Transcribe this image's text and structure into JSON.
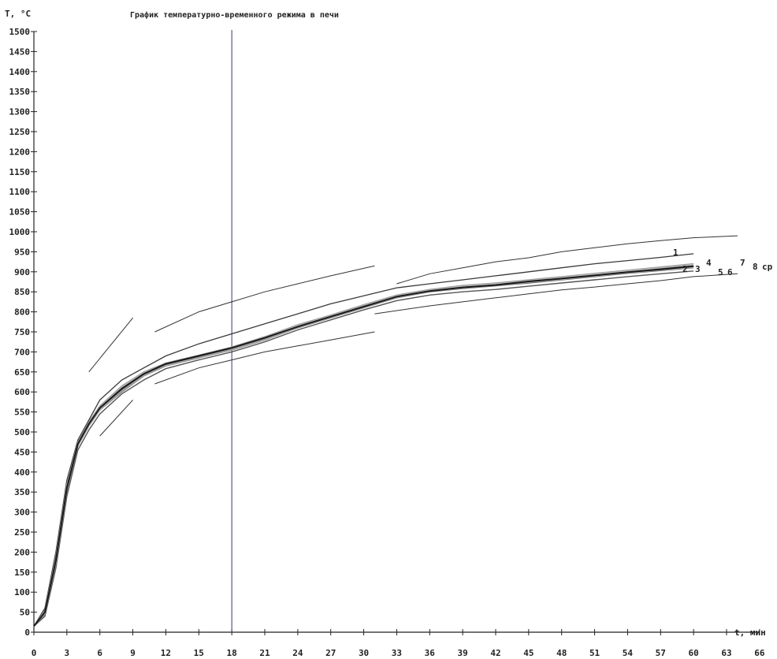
{
  "chart_data": {
    "type": "line",
    "title": "График температурно-временного режима в печи",
    "ylabel": "T, °C",
    "xlabel": "t, мин",
    "xlim": [
      0,
      66
    ],
    "ylim": [
      0,
      1500
    ],
    "x_ticks": [
      0,
      3,
      6,
      9,
      12,
      15,
      18,
      21,
      24,
      27,
      30,
      33,
      36,
      39,
      42,
      45,
      48,
      51,
      54,
      57,
      60,
      63,
      66
    ],
    "y_ticks": [
      0,
      50,
      100,
      150,
      200,
      250,
      300,
      350,
      400,
      450,
      500,
      550,
      600,
      650,
      700,
      750,
      800,
      850,
      900,
      950,
      1000,
      1050,
      1100,
      1150,
      1200,
      1250,
      1300,
      1350,
      1400,
      1450,
      1500
    ],
    "grid": false,
    "markers": [
      {
        "x": 18
      }
    ],
    "series": [
      {
        "name": "1",
        "color": "#3a3a3a",
        "points": [
          [
            0,
            15
          ],
          [
            1,
            60
          ],
          [
            2,
            200
          ],
          [
            3,
            380
          ],
          [
            4,
            480
          ],
          [
            5,
            530
          ],
          [
            6,
            580
          ],
          [
            8,
            630
          ],
          [
            10,
            660
          ],
          [
            12,
            690
          ],
          [
            15,
            720
          ],
          [
            18,
            745
          ],
          [
            21,
            770
          ],
          [
            24,
            795
          ],
          [
            27,
            820
          ],
          [
            30,
            840
          ],
          [
            33,
            860
          ],
          [
            36,
            870
          ],
          [
            39,
            880
          ],
          [
            42,
            890
          ],
          [
            45,
            900
          ],
          [
            48,
            910
          ],
          [
            51,
            920
          ],
          [
            54,
            928
          ],
          [
            57,
            936
          ],
          [
            60,
            945
          ]
        ]
      },
      {
        "name": "2",
        "color": "#444444",
        "points": [
          [
            0,
            15
          ],
          [
            1,
            50
          ],
          [
            2,
            180
          ],
          [
            3,
            360
          ],
          [
            4,
            470
          ],
          [
            5,
            520
          ],
          [
            6,
            560
          ],
          [
            8,
            610
          ],
          [
            10,
            645
          ],
          [
            12,
            670
          ],
          [
            15,
            690
          ],
          [
            18,
            710
          ],
          [
            21,
            735
          ],
          [
            24,
            765
          ],
          [
            27,
            790
          ],
          [
            30,
            815
          ],
          [
            33,
            840
          ],
          [
            36,
            855
          ],
          [
            39,
            862
          ],
          [
            42,
            870
          ],
          [
            45,
            878
          ],
          [
            48,
            885
          ],
          [
            51,
            893
          ],
          [
            54,
            900
          ],
          [
            57,
            908
          ],
          [
            60,
            915
          ]
        ]
      },
      {
        "name": "3",
        "color": "#666666",
        "points": [
          [
            0,
            15
          ],
          [
            1,
            45
          ],
          [
            2,
            170
          ],
          [
            3,
            350
          ],
          [
            4,
            465
          ],
          [
            5,
            515
          ],
          [
            6,
            555
          ],
          [
            8,
            600
          ],
          [
            10,
            640
          ],
          [
            12,
            665
          ],
          [
            15,
            685
          ],
          [
            18,
            705
          ],
          [
            21,
            730
          ],
          [
            24,
            760
          ],
          [
            27,
            785
          ],
          [
            30,
            810
          ],
          [
            33,
            835
          ],
          [
            36,
            850
          ],
          [
            39,
            858
          ],
          [
            42,
            865
          ],
          [
            45,
            872
          ],
          [
            48,
            880
          ],
          [
            51,
            888
          ],
          [
            54,
            896
          ],
          [
            57,
            903
          ],
          [
            60,
            910
          ]
        ]
      },
      {
        "name": "4",
        "color": "#999999",
        "points": [
          [
            0,
            15
          ],
          [
            1,
            55
          ],
          [
            2,
            190
          ],
          [
            3,
            370
          ],
          [
            4,
            475
          ],
          [
            5,
            525
          ],
          [
            6,
            565
          ],
          [
            8,
            615
          ],
          [
            10,
            650
          ],
          [
            12,
            672
          ],
          [
            15,
            692
          ],
          [
            18,
            712
          ],
          [
            21,
            738
          ],
          [
            24,
            768
          ],
          [
            27,
            792
          ],
          [
            30,
            818
          ],
          [
            33,
            842
          ],
          [
            36,
            856
          ],
          [
            39,
            866
          ],
          [
            42,
            872
          ],
          [
            45,
            880
          ],
          [
            48,
            888
          ],
          [
            51,
            896
          ],
          [
            54,
            904
          ],
          [
            57,
            912
          ],
          [
            60,
            920
          ]
        ]
      },
      {
        "name": "5",
        "color": "#555555",
        "points": [
          [
            0,
            15
          ],
          [
            1,
            40
          ],
          [
            2,
            160
          ],
          [
            3,
            340
          ],
          [
            4,
            455
          ],
          [
            5,
            505
          ],
          [
            6,
            545
          ],
          [
            8,
            595
          ],
          [
            10,
            630
          ],
          [
            12,
            658
          ],
          [
            15,
            680
          ],
          [
            18,
            700
          ],
          [
            21,
            725
          ],
          [
            24,
            755
          ],
          [
            27,
            780
          ],
          [
            30,
            805
          ],
          [
            33,
            828
          ],
          [
            36,
            842
          ],
          [
            39,
            850
          ],
          [
            42,
            856
          ],
          [
            45,
            864
          ],
          [
            48,
            872
          ],
          [
            51,
            880
          ],
          [
            54,
            888
          ],
          [
            57,
            895
          ],
          [
            60,
            902
          ]
        ]
      },
      {
        "name": "6",
        "color": "#777777",
        "points": [
          [
            0,
            15
          ],
          [
            1,
            48
          ],
          [
            2,
            175
          ],
          [
            3,
            355
          ],
          [
            4,
            468
          ],
          [
            5,
            518
          ],
          [
            6,
            558
          ],
          [
            8,
            605
          ],
          [
            10,
            642
          ],
          [
            12,
            668
          ],
          [
            15,
            688
          ],
          [
            18,
            708
          ],
          [
            21,
            733
          ],
          [
            24,
            762
          ],
          [
            27,
            788
          ],
          [
            30,
            812
          ],
          [
            33,
            838
          ],
          [
            36,
            852
          ],
          [
            39,
            860
          ],
          [
            42,
            866
          ],
          [
            45,
            875
          ],
          [
            48,
            882
          ],
          [
            51,
            890
          ],
          [
            54,
            898
          ],
          [
            57,
            905
          ],
          [
            60,
            912
          ]
        ]
      },
      {
        "name": "7",
        "color": "#bbbbbb",
        "points": [
          [
            0,
            15
          ],
          [
            1,
            52
          ],
          [
            2,
            185
          ],
          [
            3,
            365
          ],
          [
            4,
            472
          ],
          [
            5,
            522
          ],
          [
            6,
            562
          ],
          [
            8,
            612
          ],
          [
            10,
            648
          ],
          [
            12,
            670
          ],
          [
            15,
            690
          ],
          [
            18,
            710
          ],
          [
            21,
            736
          ],
          [
            24,
            766
          ],
          [
            27,
            790
          ],
          [
            30,
            816
          ],
          [
            33,
            840
          ],
          [
            36,
            854
          ],
          [
            39,
            864
          ],
          [
            42,
            870
          ],
          [
            45,
            878
          ],
          [
            48,
            886
          ],
          [
            51,
            894
          ],
          [
            54,
            902
          ],
          [
            57,
            910
          ],
          [
            60,
            918
          ]
        ]
      },
      {
        "name": "8",
        "color": "#aaaaaa",
        "points": [
          [
            0,
            15
          ],
          [
            1,
            46
          ],
          [
            2,
            172
          ],
          [
            3,
            352
          ],
          [
            4,
            466
          ],
          [
            5,
            516
          ],
          [
            6,
            556
          ],
          [
            8,
            602
          ],
          [
            10,
            641
          ],
          [
            12,
            666
          ],
          [
            15,
            686
          ],
          [
            18,
            706
          ],
          [
            21,
            731
          ],
          [
            24,
            761
          ],
          [
            27,
            786
          ],
          [
            30,
            811
          ],
          [
            33,
            836
          ],
          [
            36,
            851
          ],
          [
            39,
            859
          ],
          [
            42,
            866
          ],
          [
            45,
            874
          ],
          [
            48,
            881
          ],
          [
            51,
            889
          ],
          [
            54,
            897
          ],
          [
            57,
            904
          ],
          [
            60,
            911
          ]
        ]
      },
      {
        "name": "ср",
        "color": "#1a1a1a",
        "points": [
          [
            0,
            15
          ],
          [
            1,
            50
          ],
          [
            2,
            180
          ],
          [
            3,
            360
          ],
          [
            4,
            470
          ],
          [
            5,
            520
          ],
          [
            6,
            560
          ],
          [
            8,
            608
          ],
          [
            10,
            645
          ],
          [
            12,
            670
          ],
          [
            15,
            690
          ],
          [
            18,
            710
          ],
          [
            21,
            735
          ],
          [
            24,
            763
          ],
          [
            27,
            788
          ],
          [
            30,
            813
          ],
          [
            33,
            838
          ],
          [
            36,
            852
          ],
          [
            39,
            861
          ],
          [
            42,
            867
          ],
          [
            45,
            876
          ],
          [
            48,
            883
          ],
          [
            51,
            891
          ],
          [
            54,
            899
          ],
          [
            57,
            906
          ],
          [
            60,
            914
          ]
        ]
      }
    ],
    "envelope": [
      {
        "points": [
          [
            5,
            650
          ],
          [
            9,
            785
          ]
        ]
      },
      {
        "points": [
          [
            11,
            750
          ],
          [
            15,
            800
          ],
          [
            18,
            825
          ],
          [
            21,
            850
          ],
          [
            24,
            870
          ],
          [
            27,
            890
          ],
          [
            31,
            915
          ]
        ]
      },
      {
        "points": [
          [
            33,
            870
          ],
          [
            36,
            895
          ],
          [
            39,
            910
          ],
          [
            42,
            925
          ],
          [
            45,
            935
          ],
          [
            48,
            950
          ],
          [
            51,
            960
          ],
          [
            54,
            970
          ],
          [
            57,
            978
          ],
          [
            60,
            985
          ],
          [
            64,
            990
          ]
        ]
      },
      {
        "points": [
          [
            6,
            490
          ],
          [
            9,
            580
          ]
        ]
      },
      {
        "points": [
          [
            11,
            620
          ],
          [
            15,
            660
          ],
          [
            18,
            680
          ],
          [
            21,
            700
          ],
          [
            24,
            715
          ],
          [
            27,
            730
          ],
          [
            31,
            750
          ]
        ]
      },
      {
        "points": [
          [
            31,
            795
          ],
          [
            36,
            815
          ],
          [
            39,
            825
          ],
          [
            42,
            835
          ],
          [
            45,
            845
          ],
          [
            48,
            855
          ],
          [
            51,
            862
          ],
          [
            54,
            870
          ],
          [
            57,
            878
          ],
          [
            60,
            888
          ],
          [
            64,
            895
          ]
        ]
      }
    ]
  }
}
